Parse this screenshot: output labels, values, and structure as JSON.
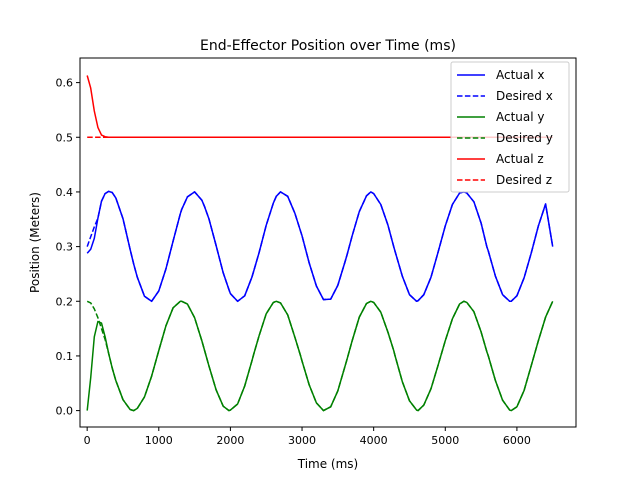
{
  "chart_data": {
    "type": "line",
    "title": "End-Effector Position over Time (ms)",
    "xlabel": "Time (ms)",
    "ylabel": "Position (Meters)",
    "xlim": [
      -100,
      6825
    ],
    "ylim": [
      -0.03,
      0.645
    ],
    "xticks": [
      0,
      1000,
      2000,
      3000,
      4000,
      5000,
      6000
    ],
    "yticks": [
      0.0,
      0.1,
      0.2,
      0.3,
      0.4,
      0.5,
      0.6
    ],
    "grid": false,
    "legend_position": "top-right",
    "x": [
      0,
      50,
      100,
      150,
      200,
      250,
      300,
      350,
      400,
      500,
      600,
      650,
      700,
      800,
      900,
      1000,
      1100,
      1200,
      1300,
      1320,
      1400,
      1500,
      1600,
      1640,
      1700,
      1800,
      1900,
      1980,
      2000,
      2100,
      2200,
      2300,
      2330,
      2400,
      2500,
      2600,
      2640,
      2700,
      2800,
      2900,
      2980,
      3000,
      3100,
      3200,
      3300,
      3400,
      3500,
      3600,
      3630,
      3700,
      3800,
      3900,
      3960,
      4000,
      4100,
      4200,
      4280,
      4300,
      4400,
      4500,
      4600,
      4620,
      4700,
      4800,
      4900,
      5000,
      5100,
      5200,
      5260,
      5300,
      5400,
      5500,
      5580,
      5600,
      5700,
      5800,
      5900,
      5920,
      6000,
      6100,
      6200,
      6300,
      6400,
      6500
    ],
    "series": [
      {
        "name": "Actual x",
        "color": "#0000ff",
        "dash": "solid",
        "values": [
          0.288,
          0.295,
          0.315,
          0.352,
          0.383,
          0.397,
          0.401,
          0.399,
          0.389,
          0.351,
          0.295,
          0.268,
          0.244,
          0.209,
          0.2,
          0.219,
          0.259,
          0.31,
          0.36,
          0.368,
          0.391,
          0.4,
          0.385,
          0.373,
          0.351,
          0.302,
          0.252,
          0.221,
          0.214,
          0.2,
          0.21,
          0.244,
          0.257,
          0.289,
          0.339,
          0.38,
          0.392,
          0.4,
          0.392,
          0.361,
          0.328,
          0.32,
          0.27,
          0.228,
          0.203,
          0.204,
          0.229,
          0.272,
          0.286,
          0.32,
          0.364,
          0.393,
          0.4,
          0.397,
          0.377,
          0.339,
          0.3,
          0.291,
          0.246,
          0.212,
          0.2,
          0.201,
          0.212,
          0.244,
          0.29,
          0.338,
          0.377,
          0.398,
          0.4,
          0.398,
          0.382,
          0.343,
          0.3,
          0.292,
          0.246,
          0.212,
          0.2,
          0.2,
          0.21,
          0.243,
          0.288,
          0.338,
          0.378,
          0.3
        ]
      },
      {
        "name": "Desired x",
        "color": "#0000ff",
        "dash": "dashed",
        "values": [
          0.3,
          0.318,
          0.336,
          0.352,
          0.383,
          0.397,
          0.401,
          0.399,
          0.389,
          0.351,
          0.295,
          0.268,
          0.244,
          0.209,
          0.2,
          0.219,
          0.259,
          0.31,
          0.36,
          0.368,
          0.391,
          0.4,
          0.385,
          0.373,
          0.351,
          0.302,
          0.252,
          0.221,
          0.214,
          0.2,
          0.21,
          0.244,
          0.257,
          0.289,
          0.339,
          0.38,
          0.392,
          0.4,
          0.392,
          0.361,
          0.328,
          0.32,
          0.27,
          0.228,
          0.203,
          0.204,
          0.229,
          0.272,
          0.286,
          0.32,
          0.364,
          0.393,
          0.4,
          0.397,
          0.377,
          0.339,
          0.3,
          0.291,
          0.246,
          0.212,
          0.2,
          0.201,
          0.212,
          0.244,
          0.29,
          0.338,
          0.377,
          0.398,
          0.4,
          0.398,
          0.382,
          0.343,
          0.3,
          0.292,
          0.246,
          0.212,
          0.2,
          0.2,
          0.21,
          0.243,
          0.288,
          0.338,
          0.378,
          0.3
        ]
      },
      {
        "name": "Actual y",
        "color": "#008000",
        "dash": "solid",
        "values": [
          0.0,
          0.06,
          0.135,
          0.163,
          0.16,
          0.135,
          0.105,
          0.078,
          0.055,
          0.02,
          0.002,
          0.0,
          0.004,
          0.025,
          0.063,
          0.11,
          0.155,
          0.188,
          0.2,
          0.2,
          0.195,
          0.17,
          0.128,
          0.11,
          0.082,
          0.038,
          0.008,
          0.0,
          0.001,
          0.012,
          0.045,
          0.091,
          0.105,
          0.137,
          0.177,
          0.198,
          0.2,
          0.197,
          0.175,
          0.134,
          0.1,
          0.091,
          0.047,
          0.014,
          0.0,
          0.007,
          0.036,
          0.081,
          0.095,
          0.128,
          0.171,
          0.196,
          0.2,
          0.198,
          0.18,
          0.143,
          0.11,
          0.1,
          0.053,
          0.018,
          0.001,
          0.0,
          0.01,
          0.04,
          0.083,
          0.128,
          0.168,
          0.195,
          0.2,
          0.198,
          0.181,
          0.144,
          0.108,
          0.1,
          0.055,
          0.019,
          0.001,
          0.0,
          0.007,
          0.037,
          0.082,
          0.128,
          0.171,
          0.2
        ]
      },
      {
        "name": "Desired y",
        "color": "#008000",
        "dash": "dashed",
        "values": [
          0.2,
          0.197,
          0.186,
          0.17,
          0.15,
          0.13,
          0.105,
          0.078,
          0.055,
          0.02,
          0.002,
          0.0,
          0.004,
          0.025,
          0.063,
          0.11,
          0.155,
          0.188,
          0.2,
          0.2,
          0.195,
          0.17,
          0.128,
          0.11,
          0.082,
          0.038,
          0.008,
          0.0,
          0.001,
          0.012,
          0.045,
          0.091,
          0.105,
          0.137,
          0.177,
          0.198,
          0.2,
          0.197,
          0.175,
          0.134,
          0.1,
          0.091,
          0.047,
          0.014,
          0.0,
          0.007,
          0.036,
          0.081,
          0.095,
          0.128,
          0.171,
          0.196,
          0.2,
          0.198,
          0.18,
          0.143,
          0.11,
          0.1,
          0.053,
          0.018,
          0.001,
          0.0,
          0.01,
          0.04,
          0.083,
          0.128,
          0.168,
          0.195,
          0.2,
          0.198,
          0.181,
          0.144,
          0.108,
          0.1,
          0.055,
          0.019,
          0.001,
          0.0,
          0.007,
          0.037,
          0.082,
          0.128,
          0.171,
          0.2
        ]
      },
      {
        "name": "Actual z",
        "color": "#ff0000",
        "dash": "solid",
        "values": [
          0.613,
          0.59,
          0.548,
          0.518,
          0.504,
          0.501,
          0.5,
          0.5,
          0.5,
          0.5,
          0.5,
          0.5,
          0.5,
          0.5,
          0.5,
          0.5,
          0.5,
          0.5,
          0.5,
          0.5,
          0.5,
          0.5,
          0.5,
          0.5,
          0.5,
          0.5,
          0.5,
          0.5,
          0.5,
          0.5,
          0.5,
          0.5,
          0.5,
          0.5,
          0.5,
          0.5,
          0.5,
          0.5,
          0.5,
          0.5,
          0.5,
          0.5,
          0.5,
          0.5,
          0.5,
          0.5,
          0.5,
          0.5,
          0.5,
          0.5,
          0.5,
          0.5,
          0.5,
          0.5,
          0.5,
          0.5,
          0.5,
          0.5,
          0.5,
          0.5,
          0.5,
          0.5,
          0.5,
          0.5,
          0.5,
          0.5,
          0.5,
          0.5,
          0.5,
          0.5,
          0.5,
          0.5,
          0.5,
          0.5,
          0.5,
          0.5,
          0.5,
          0.5,
          0.5,
          0.5,
          0.5,
          0.5,
          0.5,
          0.5
        ]
      },
      {
        "name": "Desired z",
        "color": "#ff0000",
        "dash": "dashed",
        "values": [
          0.5,
          0.5,
          0.5,
          0.5,
          0.5,
          0.5,
          0.5,
          0.5,
          0.5,
          0.5,
          0.5,
          0.5,
          0.5,
          0.5,
          0.5,
          0.5,
          0.5,
          0.5,
          0.5,
          0.5,
          0.5,
          0.5,
          0.5,
          0.5,
          0.5,
          0.5,
          0.5,
          0.5,
          0.5,
          0.5,
          0.5,
          0.5,
          0.5,
          0.5,
          0.5,
          0.5,
          0.5,
          0.5,
          0.5,
          0.5,
          0.5,
          0.5,
          0.5,
          0.5,
          0.5,
          0.5,
          0.5,
          0.5,
          0.5,
          0.5,
          0.5,
          0.5,
          0.5,
          0.5,
          0.5,
          0.5,
          0.5,
          0.5,
          0.5,
          0.5,
          0.5,
          0.5,
          0.5,
          0.5,
          0.5,
          0.5,
          0.5,
          0.5,
          0.5,
          0.5,
          0.5,
          0.5,
          0.5,
          0.5,
          0.5,
          0.5,
          0.5,
          0.5,
          0.5,
          0.5,
          0.5,
          0.5,
          0.5,
          0.5
        ]
      }
    ]
  }
}
